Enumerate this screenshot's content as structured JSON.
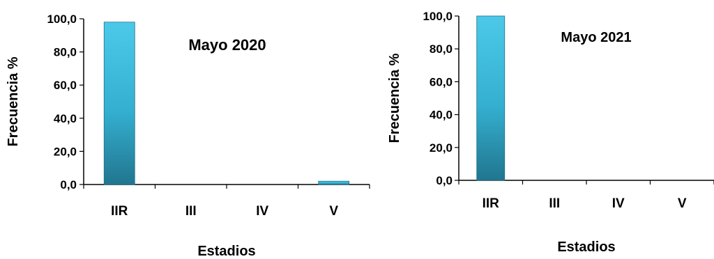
{
  "chart_data": [
    {
      "type": "bar",
      "title": "Mayo 2020",
      "xlabel": "Estadios",
      "ylabel": "Frecuencia %",
      "categories": [
        "IIR",
        "III",
        "IV",
        "V"
      ],
      "values": [
        98.0,
        0.0,
        0.0,
        2.0
      ],
      "ylim": [
        0,
        100
      ],
      "yticks": [
        "0,0",
        "20,0",
        "40,0",
        "60,0",
        "80,0",
        "100,0"
      ],
      "bar_color": "#2FB6D6",
      "grid": false,
      "legend": "none"
    },
    {
      "type": "bar",
      "title": "Mayo 2021",
      "xlabel": "Estadios",
      "ylabel": "Frecuencia %",
      "categories": [
        "IIR",
        "III",
        "IV",
        "V"
      ],
      "values": [
        100.0,
        0.0,
        0.0,
        0.0
      ],
      "ylim": [
        0,
        100
      ],
      "yticks": [
        "0,0",
        "20,0",
        "40,0",
        "60,0",
        "80,0",
        "100,0"
      ],
      "bar_color": "#2FB6D6",
      "grid": false,
      "legend": "none"
    }
  ]
}
